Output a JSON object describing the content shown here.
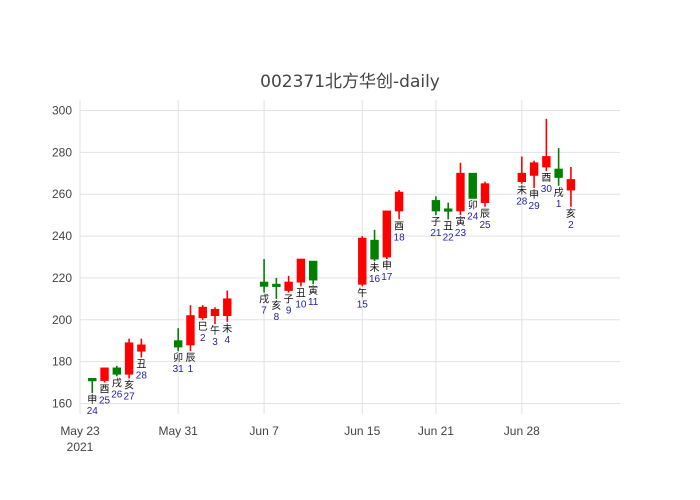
{
  "chart_data": {
    "type": "candlestick",
    "title": "002371北方华创-daily",
    "xlabel": "",
    "ylabel": "",
    "ylim": [
      155,
      305
    ],
    "xlim": [
      "2021-05-23",
      "2021-07-06"
    ],
    "grid": true,
    "legend": "none",
    "colors": {
      "up": "#ff0000",
      "down": "#008000",
      "annotation_number": "#1f1fa8",
      "annotation_glyph": "#111111"
    },
    "y_ticks": [
      "160",
      "180",
      "200",
      "220",
      "240",
      "260",
      "280",
      "300"
    ],
    "x_ticks": [
      {
        "date": "2021-05-23",
        "label": "May 23",
        "sublabel": "2021"
      },
      {
        "date": "2021-05-31",
        "label": "May 31",
        "sublabel": ""
      },
      {
        "date": "2021-06-07",
        "label": "Jun 7",
        "sublabel": ""
      },
      {
        "date": "2021-06-15",
        "label": "Jun 15",
        "sublabel": ""
      },
      {
        "date": "2021-06-21",
        "label": "Jun 21",
        "sublabel": ""
      },
      {
        "date": "2021-06-28",
        "label": "Jun 28",
        "sublabel": ""
      }
    ],
    "candles": [
      {
        "date": "2021-05-24",
        "open": 172,
        "high": 172,
        "low": 165,
        "close": 171,
        "glyph": "申",
        "day": "24"
      },
      {
        "date": "2021-05-25",
        "open": 171,
        "high": 177,
        "low": 170,
        "close": 177,
        "glyph": "酉",
        "day": "25"
      },
      {
        "date": "2021-05-26",
        "open": 177,
        "high": 178,
        "low": 173,
        "close": 174,
        "glyph": "戌",
        "day": "26"
      },
      {
        "date": "2021-05-27",
        "open": 174,
        "high": 191,
        "low": 172,
        "close": 189,
        "glyph": "亥",
        "day": "27"
      },
      {
        "date": "2021-05-28",
        "open": 185,
        "high": 191,
        "low": 182,
        "close": 188,
        "glyph": "丑",
        "day": "28"
      },
      {
        "date": "2021-05-31",
        "open": 190,
        "high": 196,
        "low": 185,
        "close": 187,
        "glyph": "卯",
        "day": "31"
      },
      {
        "date": "2021-06-01",
        "open": 188,
        "high": 207,
        "low": 185,
        "close": 202,
        "glyph": "辰",
        "day": "1"
      },
      {
        "date": "2021-06-02",
        "open": 201,
        "high": 207,
        "low": 200,
        "close": 206,
        "glyph": "巳",
        "day": "2"
      },
      {
        "date": "2021-06-03",
        "open": 202,
        "high": 206,
        "low": 198,
        "close": 205,
        "glyph": "午",
        "day": "3"
      },
      {
        "date": "2021-06-04",
        "open": 202,
        "high": 214,
        "low": 199,
        "close": 210,
        "glyph": "未",
        "day": "4"
      },
      {
        "date": "2021-06-07",
        "open": 218,
        "high": 229,
        "low": 213,
        "close": 216,
        "glyph": "戌",
        "day": "7"
      },
      {
        "date": "2021-06-08",
        "open": 217,
        "high": 220,
        "low": 210,
        "close": 216,
        "glyph": "亥",
        "day": "8"
      },
      {
        "date": "2021-06-09",
        "open": 214,
        "high": 221,
        "low": 213,
        "close": 218,
        "glyph": "子",
        "day": "9"
      },
      {
        "date": "2021-06-10",
        "open": 218,
        "high": 229,
        "low": 216,
        "close": 229,
        "glyph": "丑",
        "day": "10"
      },
      {
        "date": "2021-06-11",
        "open": 228,
        "high": 228,
        "low": 217,
        "close": 219,
        "glyph": "寅",
        "day": "11"
      },
      {
        "date": "2021-06-15",
        "open": 217,
        "high": 240,
        "low": 216,
        "close": 239,
        "glyph": "午",
        "day": "15"
      },
      {
        "date": "2021-06-16",
        "open": 238,
        "high": 243,
        "low": 228,
        "close": 229,
        "glyph": "未",
        "day": "16"
      },
      {
        "date": "2021-06-17",
        "open": 230,
        "high": 252,
        "low": 229,
        "close": 252,
        "glyph": "申",
        "day": "17"
      },
      {
        "date": "2021-06-18",
        "open": 252,
        "high": 262,
        "low": 248,
        "close": 261,
        "glyph": "酉",
        "day": "18"
      },
      {
        "date": "2021-06-21",
        "open": 257,
        "high": 259,
        "low": 250,
        "close": 252,
        "glyph": "子",
        "day": "21"
      },
      {
        "date": "2021-06-22",
        "open": 253,
        "high": 256,
        "low": 248,
        "close": 252,
        "glyph": "丑",
        "day": "22"
      },
      {
        "date": "2021-06-23",
        "open": 252,
        "high": 275,
        "low": 250,
        "close": 270,
        "glyph": "寅",
        "day": "23"
      },
      {
        "date": "2021-06-24",
        "open": 270,
        "high": 270,
        "low": 258,
        "close": 258,
        "glyph": "卯",
        "day": "24"
      },
      {
        "date": "2021-06-25",
        "open": 256,
        "high": 266,
        "low": 254,
        "close": 265,
        "glyph": "辰",
        "day": "25"
      },
      {
        "date": "2021-06-28",
        "open": 266,
        "high": 278,
        "low": 265,
        "close": 270,
        "glyph": "未",
        "day": "28"
      },
      {
        "date": "2021-06-29",
        "open": 269,
        "high": 276,
        "low": 263,
        "close": 275,
        "glyph": "申",
        "day": "29"
      },
      {
        "date": "2021-06-30",
        "open": 273,
        "high": 296,
        "low": 271,
        "close": 278,
        "glyph": "酉",
        "day": "30"
      },
      {
        "date": "2021-07-01",
        "open": 272,
        "high": 282,
        "low": 264,
        "close": 268,
        "glyph": "戌",
        "day": "1"
      },
      {
        "date": "2021-07-02",
        "open": 262,
        "high": 273,
        "low": 254,
        "close": 267,
        "glyph": "亥",
        "day": "2"
      }
    ]
  }
}
